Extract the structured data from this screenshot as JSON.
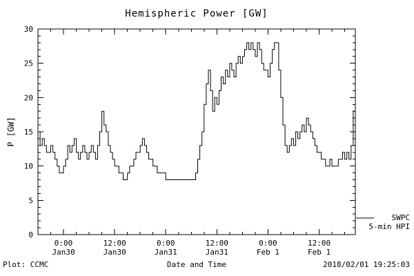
{
  "title": "Hemispheric Power [GW]",
  "footer": {
    "left": "Plot: CCMC",
    "center": "Date and Time",
    "right": "2018/02/01 19:25:03"
  },
  "legend": {
    "line1": "SWPC",
    "line2": "5-min HPI"
  },
  "colors": {
    "line": "#000000",
    "axis": "#000000",
    "background": "#ffffff"
  },
  "chart_data": {
    "type": "line",
    "step": true,
    "title": "Hemispheric Power [GW]",
    "xlabel": "Date and Time",
    "ylabel": "P [GW]",
    "ylim": [
      0,
      30
    ],
    "xlim": [
      0,
      74.5
    ],
    "grid": false,
    "legend_position": "right-outside",
    "y_ticks": [
      0,
      5,
      10,
      15,
      20,
      25,
      30
    ],
    "y_minor_step": 1,
    "x_minor_step_hours": 3,
    "x_ticks": [
      {
        "hour": 6,
        "time": "0:00",
        "date": "Jan30"
      },
      {
        "hour": 18,
        "time": "12:00",
        "date": "Jan30"
      },
      {
        "hour": 30,
        "time": "0:00",
        "date": "Jan31"
      },
      {
        "hour": 42,
        "time": "12:00",
        "date": "Jan31"
      },
      {
        "hour": 54,
        "time": "0:00",
        "date": "Feb 1"
      },
      {
        "hour": 66,
        "time": "12:00",
        "date": "Feb 1"
      }
    ],
    "series": [
      {
        "name": "SWPC 5-min HPI",
        "start_hour": 0,
        "step_hours": 0.5,
        "values": [
          15,
          13,
          14,
          13,
          12,
          12,
          13,
          12,
          11,
          10,
          9,
          9,
          10,
          11,
          13,
          12,
          13,
          14,
          12,
          11,
          12,
          13,
          12,
          11,
          12,
          13,
          12,
          11,
          13,
          15,
          18,
          16,
          15,
          13,
          12,
          11,
          10,
          10,
          9,
          9,
          8,
          8,
          9,
          10,
          10,
          11,
          12,
          12,
          13,
          14,
          13,
          12,
          11,
          11,
          10,
          10,
          9,
          9,
          9,
          9,
          8,
          8,
          8,
          8,
          8,
          8,
          8,
          8,
          8,
          8,
          8,
          8,
          8,
          8,
          9,
          11,
          13,
          15,
          19,
          22,
          24,
          21,
          18,
          20,
          19,
          21,
          23,
          22,
          24,
          23,
          25,
          24,
          23,
          25,
          26,
          25,
          26,
          27,
          28,
          27,
          28,
          27,
          26,
          28,
          27,
          25,
          24,
          24,
          23,
          25,
          27,
          28,
          28,
          24,
          20,
          16,
          13,
          12,
          13,
          14,
          13,
          15,
          14,
          15,
          16,
          15,
          17,
          16,
          15,
          14,
          13,
          12,
          12,
          11,
          11,
          10,
          10,
          11,
          10,
          10,
          10,
          11,
          11,
          12,
          11,
          12,
          11,
          13,
          18
        ]
      }
    ]
  }
}
